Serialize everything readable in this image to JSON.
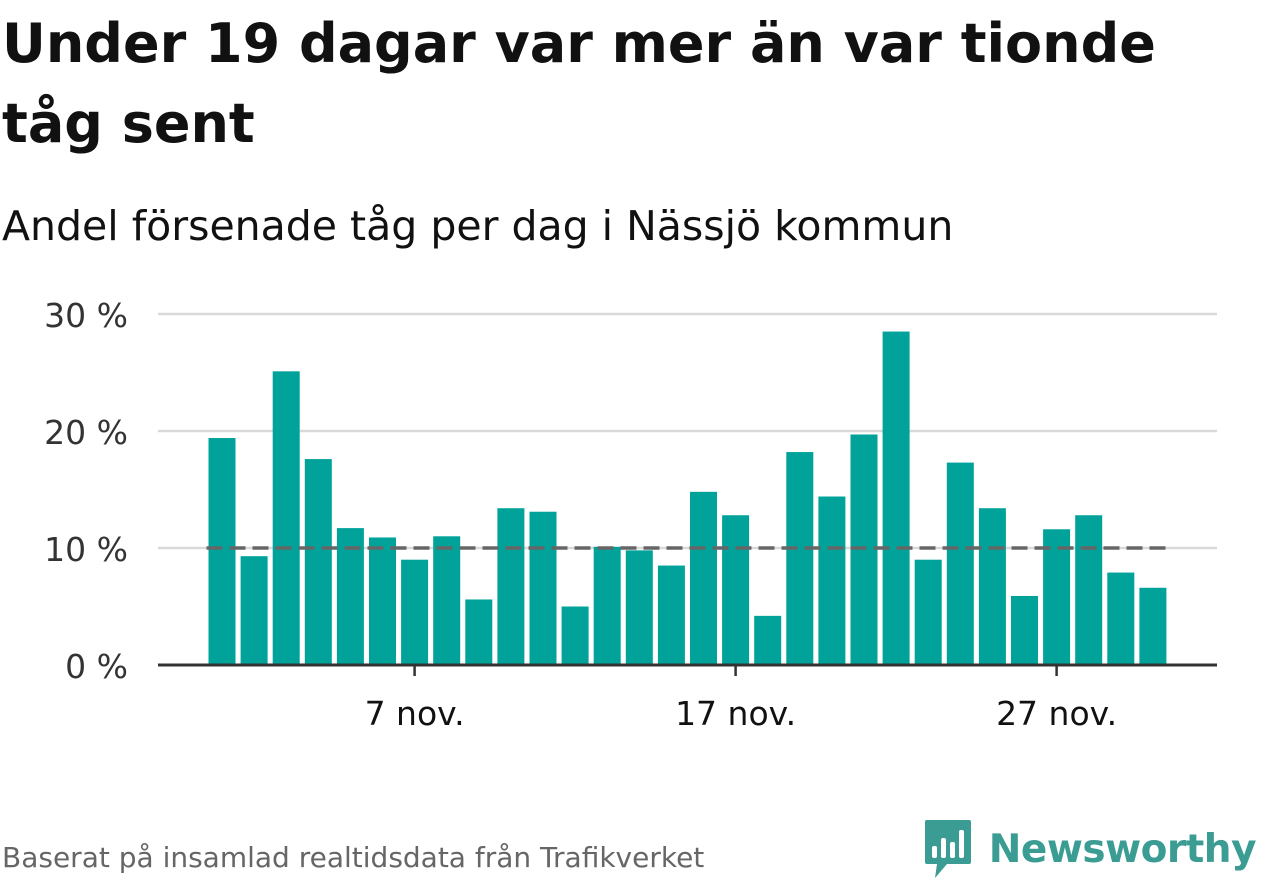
{
  "title": "Under 19 dagar var mer än var tionde tåg sent",
  "subtitle": "Andel försenade tåg per dag i Nässjö kommun",
  "source": "Baserat på insamlad realtidsdata från Trafikverket",
  "brand": {
    "name": "Newsworthy",
    "logo_icon": "newsworthy-chart-bubble-icon",
    "color": "#3a9c93"
  },
  "colors": {
    "bar": "#00a29a",
    "reference_line": "#666666",
    "grid": "#d9d9d9",
    "axis": "#333333",
    "text": "#111111"
  },
  "chart_data": {
    "type": "bar",
    "title": "Under 19 dagar var mer än var tionde tåg sent",
    "subtitle": "Andel försenade tåg per dag i Nässjö kommun",
    "xlabel": "",
    "ylabel": "",
    "x_unit": "day of November",
    "categories": [
      1,
      2,
      3,
      4,
      5,
      6,
      7,
      8,
      9,
      10,
      11,
      12,
      13,
      14,
      15,
      16,
      17,
      18,
      19,
      20,
      21,
      22,
      23,
      24,
      25,
      26,
      27,
      28,
      29,
      30
    ],
    "values": [
      19.4,
      9.3,
      25.1,
      17.6,
      11.7,
      10.9,
      9.0,
      11.0,
      5.6,
      13.4,
      13.1,
      5.0,
      10.1,
      9.8,
      8.5,
      14.8,
      12.8,
      4.2,
      18.2,
      14.4,
      19.7,
      28.5,
      9.0,
      17.3,
      13.4,
      5.9,
      11.6,
      12.8,
      7.9,
      6.6
    ],
    "ylim": [
      0,
      30
    ],
    "yticks": [
      0,
      10,
      20,
      30
    ],
    "ytick_labels": [
      "0 %",
      "10 %",
      "20 %",
      "30 %"
    ],
    "xticks": [
      7,
      17,
      27
    ],
    "xtick_labels": [
      "7 nov.",
      "17 nov.",
      "27 nov."
    ],
    "reference_line": 10,
    "grid": true,
    "legend": "none"
  }
}
